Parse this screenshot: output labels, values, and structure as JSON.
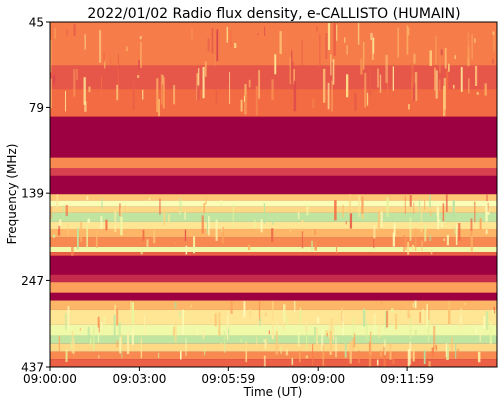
{
  "chart_data": {
    "type": "heatmap",
    "title": "2022/01/02  Radio flux density, e-CALLISTO (HUMAIN)",
    "xlabel": "Time (UT)",
    "ylabel": "Frequency (MHz)",
    "x_start": "09:00:00",
    "x_end": "09:15:00",
    "x_ticks": [
      "09:00:00",
      "09:03:00",
      "09:05:59",
      "09:09:00",
      "09:11:59"
    ],
    "y_scale": "log",
    "y_range_mhz": [
      45,
      437
    ],
    "y_axis_inverted": true,
    "y_ticks": [
      45,
      79,
      139,
      247,
      437
    ],
    "colormap": [
      "#9e0142",
      "#d53e4f",
      "#f46d43",
      "#fdae61",
      "#fee08b",
      "#ffffbf",
      "#e6f598",
      "#abdda4"
    ],
    "bands": [
      {
        "from_mhz": 45,
        "to_mhz": 60,
        "intensity": 0.32
      },
      {
        "from_mhz": 60,
        "to_mhz": 70,
        "intensity": 0.22
      },
      {
        "from_mhz": 70,
        "to_mhz": 84,
        "intensity": 0.28
      },
      {
        "from_mhz": 84,
        "to_mhz": 110,
        "intensity": 0.0
      },
      {
        "from_mhz": 110,
        "to_mhz": 118,
        "intensity": 0.35
      },
      {
        "from_mhz": 118,
        "to_mhz": 124,
        "intensity": 0.15
      },
      {
        "from_mhz": 124,
        "to_mhz": 140,
        "intensity": 0.0
      },
      {
        "from_mhz": 140,
        "to_mhz": 146,
        "intensity": 0.5
      },
      {
        "from_mhz": 146,
        "to_mhz": 152,
        "intensity": 0.75
      },
      {
        "from_mhz": 152,
        "to_mhz": 158,
        "intensity": 0.55
      },
      {
        "from_mhz": 158,
        "to_mhz": 168,
        "intensity": 0.95
      },
      {
        "from_mhz": 168,
        "to_mhz": 176,
        "intensity": 0.6
      },
      {
        "from_mhz": 176,
        "to_mhz": 186,
        "intensity": 0.45
      },
      {
        "from_mhz": 186,
        "to_mhz": 198,
        "intensity": 0.35
      },
      {
        "from_mhz": 198,
        "to_mhz": 205,
        "intensity": 0.8
      },
      {
        "from_mhz": 205,
        "to_mhz": 210,
        "intensity": 0.25
      },
      {
        "from_mhz": 210,
        "to_mhz": 238,
        "intensity": 0.0
      },
      {
        "from_mhz": 238,
        "to_mhz": 250,
        "intensity": 0.1
      },
      {
        "from_mhz": 250,
        "to_mhz": 268,
        "intensity": 0.4
      },
      {
        "from_mhz": 268,
        "to_mhz": 282,
        "intensity": 0.0
      },
      {
        "from_mhz": 282,
        "to_mhz": 300,
        "intensity": 0.45
      },
      {
        "from_mhz": 300,
        "to_mhz": 330,
        "intensity": 0.6
      },
      {
        "from_mhz": 330,
        "to_mhz": 355,
        "intensity": 0.8
      },
      {
        "from_mhz": 355,
        "to_mhz": 375,
        "intensity": 0.95
      },
      {
        "from_mhz": 375,
        "to_mhz": 395,
        "intensity": 0.55
      },
      {
        "from_mhz": 395,
        "to_mhz": 415,
        "intensity": 0.35
      },
      {
        "from_mhz": 415,
        "to_mhz": 437,
        "intensity": 0.25
      }
    ]
  }
}
